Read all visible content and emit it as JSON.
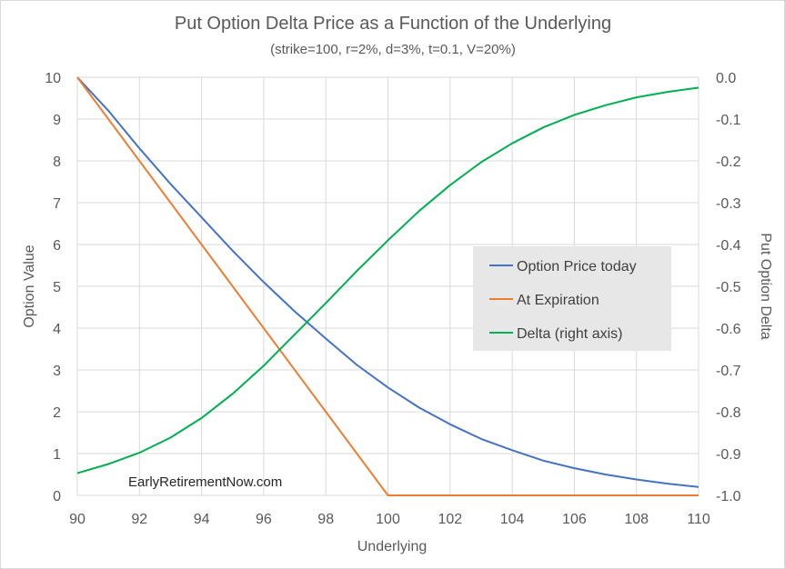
{
  "chart_data": {
    "type": "line",
    "title": "Put Option Delta Price as a Function of the Underlying",
    "subtitle": "(strike=100, r=2%, d=3%, t=0.1, V=20%)",
    "xlabel": "Underlying",
    "ylabel": "Option Value",
    "y2label": "Put Option Delta",
    "xlim": [
      90,
      110
    ],
    "ylim": [
      0,
      10
    ],
    "y2lim": [
      -1.0,
      0.0
    ],
    "x_ticks": [
      "90",
      "92",
      "94",
      "96",
      "98",
      "100",
      "102",
      "104",
      "106",
      "108",
      "110"
    ],
    "y_ticks": [
      "0",
      "1",
      "2",
      "3",
      "4",
      "5",
      "6",
      "7",
      "8",
      "9",
      "10"
    ],
    "y2_ticks": [
      "-1.0",
      "-0.9",
      "-0.8",
      "-0.7",
      "-0.6",
      "-0.5",
      "-0.4",
      "-0.3",
      "-0.2",
      "-0.1",
      "0.0"
    ],
    "grid": true,
    "legend_position": "center-right",
    "annotation": "EarlyRetirementNow.com",
    "series": [
      {
        "name": "Option Price today",
        "axis": "left",
        "color": "#4472c4",
        "x": [
          90,
          91,
          92,
          93,
          94,
          95,
          96,
          97,
          98,
          99,
          100,
          101,
          102,
          103,
          104,
          105,
          106,
          107,
          108,
          109,
          110
        ],
        "y": [
          10.1,
          9.2,
          8.3,
          7.45,
          6.65,
          5.85,
          5.1,
          4.4,
          3.75,
          3.12,
          2.58,
          2.1,
          1.7,
          1.35,
          1.08,
          0.83,
          0.65,
          0.5,
          0.38,
          0.28,
          0.2
        ]
      },
      {
        "name": "At Expiration",
        "axis": "left",
        "color": "#ed7d31",
        "x": [
          90,
          100,
          110
        ],
        "y": [
          10,
          0,
          0
        ]
      },
      {
        "name": "Delta (right axis)",
        "axis": "right",
        "color": "#00b050",
        "x": [
          90,
          91,
          92,
          93,
          94,
          95,
          96,
          97,
          98,
          99,
          100,
          101,
          102,
          103,
          104,
          105,
          106,
          107,
          108,
          109,
          110
        ],
        "y": [
          -0.947,
          -0.925,
          -0.898,
          -0.862,
          -0.815,
          -0.757,
          -0.69,
          -0.615,
          -0.54,
          -0.463,
          -0.39,
          -0.32,
          -0.258,
          -0.203,
          -0.158,
          -0.12,
          -0.09,
          -0.067,
          -0.048,
          -0.035,
          -0.025
        ]
      }
    ]
  }
}
